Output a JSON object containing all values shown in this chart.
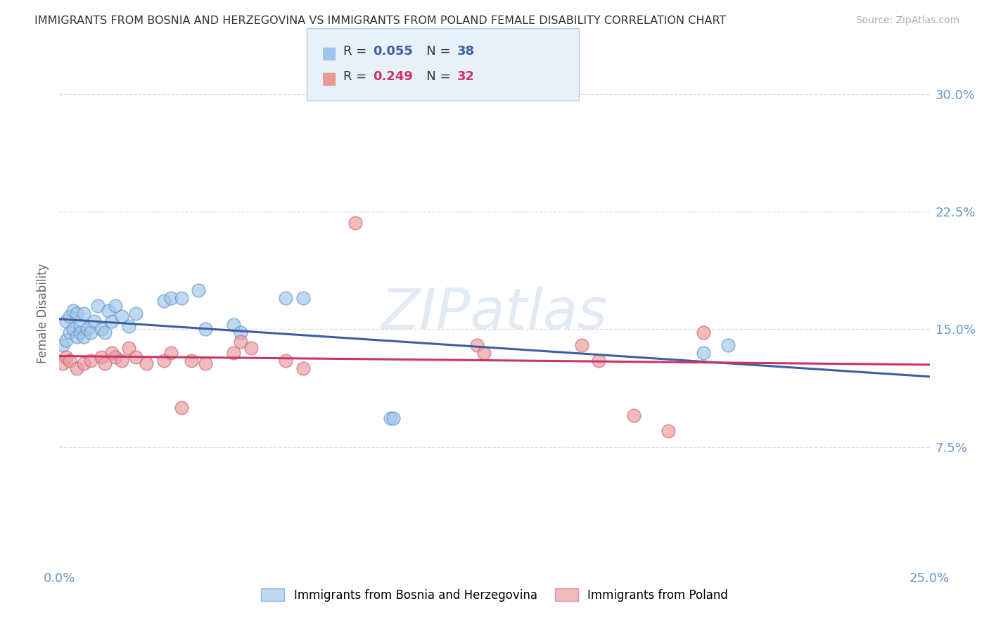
{
  "title": "IMMIGRANTS FROM BOSNIA AND HERZEGOVINA VS IMMIGRANTS FROM POLAND FEMALE DISABILITY CORRELATION CHART",
  "source": "Source: ZipAtlas.com",
  "ylabel": "Female Disability",
  "xlim": [
    0.0,
    0.25
  ],
  "ylim": [
    0.0,
    0.32
  ],
  "xticks": [
    0.0,
    0.05,
    0.1,
    0.15,
    0.2,
    0.25
  ],
  "xticklabels": [
    "0.0%",
    "",
    "",
    "",
    "",
    "25.0%"
  ],
  "ytick_positions": [
    0.075,
    0.15,
    0.225,
    0.3
  ],
  "yticklabels": [
    "7.5%",
    "15.0%",
    "22.5%",
    "30.0%"
  ],
  "color_blue": "#9fc5e8",
  "color_pink": "#ea9999",
  "border_blue": "#6699cc",
  "border_pink": "#cc6688",
  "line_blue": "#3c5fa0",
  "line_pink": "#cc3366",
  "tick_color": "#6699cc",
  "legend_R1": "0.055",
  "legend_N1": "38",
  "legend_R2": "0.249",
  "legend_N2": "32",
  "legend_label1": "Immigrants from Bosnia and Herzegovina",
  "legend_label2": "Immigrants from Poland",
  "watermark": "ZIPatlas",
  "bosnia_x": [
    0.001,
    0.002,
    0.002,
    0.003,
    0.003,
    0.004,
    0.004,
    0.005,
    0.005,
    0.006,
    0.006,
    0.007,
    0.007,
    0.008,
    0.009,
    0.01,
    0.011,
    0.012,
    0.013,
    0.014,
    0.015,
    0.016,
    0.018,
    0.02,
    0.022,
    0.03,
    0.032,
    0.035,
    0.04,
    0.042,
    0.05,
    0.052,
    0.065,
    0.07,
    0.095,
    0.096,
    0.185,
    0.192
  ],
  "bosnia_y": [
    0.14,
    0.143,
    0.155,
    0.148,
    0.158,
    0.15,
    0.162,
    0.145,
    0.16,
    0.152,
    0.148,
    0.145,
    0.16,
    0.15,
    0.148,
    0.155,
    0.165,
    0.15,
    0.148,
    0.162,
    0.155,
    0.165,
    0.158,
    0.152,
    0.16,
    0.168,
    0.17,
    0.17,
    0.175,
    0.15,
    0.153,
    0.148,
    0.17,
    0.17,
    0.093,
    0.093,
    0.135,
    0.14
  ],
  "poland_x": [
    0.001,
    0.002,
    0.003,
    0.005,
    0.007,
    0.009,
    0.012,
    0.013,
    0.015,
    0.016,
    0.018,
    0.02,
    0.022,
    0.025,
    0.03,
    0.032,
    0.035,
    0.038,
    0.042,
    0.05,
    0.052,
    0.055,
    0.065,
    0.07,
    0.085,
    0.12,
    0.122,
    0.15,
    0.155,
    0.165,
    0.175,
    0.185
  ],
  "poland_y": [
    0.128,
    0.132,
    0.13,
    0.125,
    0.128,
    0.13,
    0.132,
    0.128,
    0.135,
    0.132,
    0.13,
    0.138,
    0.132,
    0.128,
    0.13,
    0.135,
    0.1,
    0.13,
    0.128,
    0.135,
    0.142,
    0.138,
    0.13,
    0.125,
    0.218,
    0.14,
    0.135,
    0.14,
    0.13,
    0.095,
    0.085,
    0.148
  ]
}
